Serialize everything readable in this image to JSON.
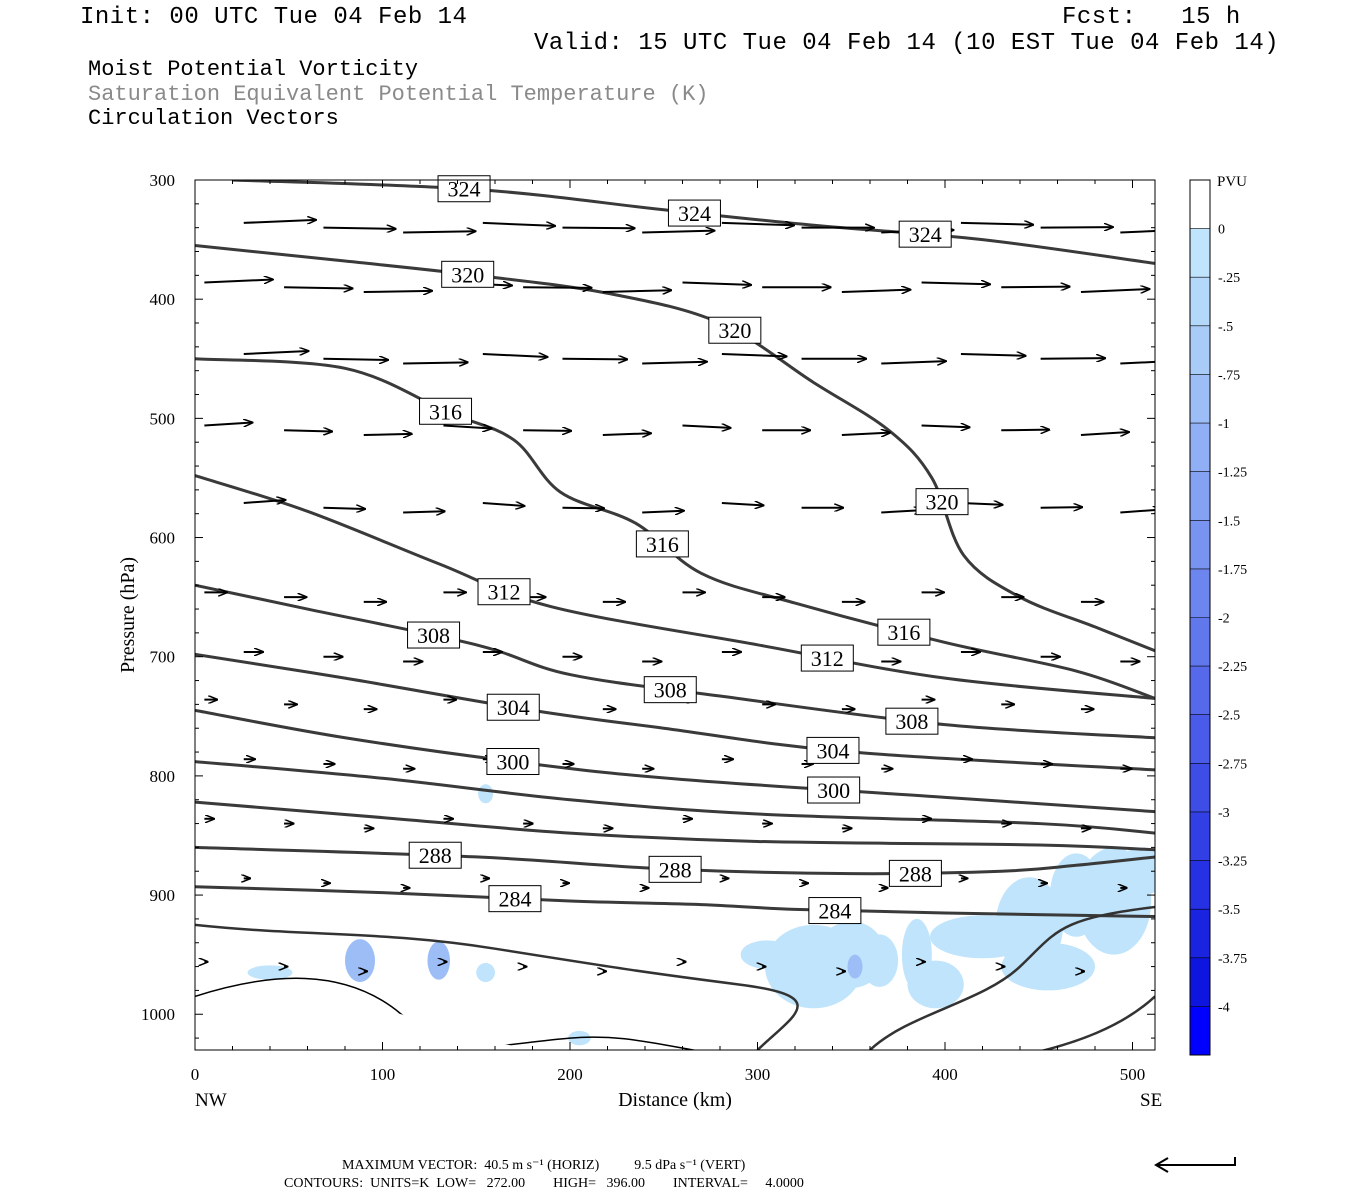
{
  "header": {
    "init": "Init: 00 UTC Tue 04 Feb 14",
    "fcst": "Fcst:   15 h",
    "valid": "Valid: 15 UTC Tue 04 Feb 14 (10 EST Tue 04 Feb 14)"
  },
  "titles": [
    "Moist Potential Vorticity",
    "Saturation Equivalent Potential Temperature (K)",
    "Circulation Vectors"
  ],
  "colors": {
    "title_gray": "#8a8a8a",
    "contour": "#3a3a3a",
    "pv_light": "#bfe4fb"
  },
  "footer": {
    "max_vector": "MAXIMUM VECTOR:  40.5 m s⁻¹ (HORIZ)          9.5 dPa s⁻¹ (VERT)",
    "contours": "CONTOURS:  UNITS=K  LOW=   272.00        HIGH=   396.00        INTERVAL=     4.0000"
  },
  "chart_data": {
    "type": "cross-section",
    "xlabel": "Distance (km)",
    "ylabel": "Pressure (hPa)",
    "x_ticks": [
      "0",
      "100",
      "200",
      "300",
      "400",
      "500"
    ],
    "x_end_labels": [
      "NW",
      "SE"
    ],
    "y_ticks": [
      "300",
      "400",
      "500",
      "600",
      "700",
      "800",
      "900",
      "1000"
    ],
    "xlim": [
      0,
      512
    ],
    "ylim": [
      1030,
      300
    ],
    "colorbar": {
      "title": "PVU",
      "labels": [
        "0",
        "-.25",
        "-.5",
        "-.75",
        "-1",
        "-1.25",
        "-1.5",
        "-1.75",
        "-2",
        "-2.25",
        "-2.5",
        "-2.75",
        "-3",
        "-3.25",
        "-3.5",
        "-3.75",
        "-4"
      ],
      "colors": [
        "#ffffff",
        "#bfe4fb",
        "#b4d8fa",
        "#a8cbf8",
        "#9cbdf6",
        "#90aff4",
        "#85a1f2",
        "#7993f0",
        "#6d85ee",
        "#6177ec",
        "#5569ea",
        "#495be8",
        "#3d4de6",
        "#313fe4",
        "#2531e2",
        "#1923e0",
        "#0d15de",
        "#0000ff"
      ]
    },
    "contours": [
      {
        "level": 324,
        "labels": [
          "324",
          "324",
          "324"
        ],
        "pts": [
          [
            20,
            300
          ],
          [
            150,
            308
          ],
          [
            250,
            325
          ],
          [
            330,
            338
          ],
          [
            420,
            350
          ],
          [
            512,
            370
          ]
        ]
      },
      {
        "level": 320,
        "labels": [
          "320",
          "320",
          "320"
        ],
        "pts": [
          [
            0,
            355
          ],
          [
            80,
            368
          ],
          [
            150,
            380
          ],
          [
            220,
            395
          ],
          [
            280,
            420
          ],
          [
            330,
            470
          ],
          [
            370,
            510
          ],
          [
            393,
            550
          ],
          [
            410,
            615
          ],
          [
            440,
            650
          ],
          [
            480,
            675
          ],
          [
            512,
            695
          ]
        ]
      },
      {
        "level": 316,
        "labels": [
          "316",
          "316",
          "316"
        ],
        "pts": [
          [
            0,
            450
          ],
          [
            80,
            458
          ],
          [
            135,
            495
          ],
          [
            170,
            518
          ],
          [
            195,
            562
          ],
          [
            235,
            588
          ],
          [
            270,
            630
          ],
          [
            320,
            655
          ],
          [
            400,
            688
          ],
          [
            470,
            712
          ],
          [
            512,
            735
          ]
        ]
      },
      {
        "level": 312,
        "labels": [
          "312",
          "312"
        ],
        "pts": [
          [
            0,
            548
          ],
          [
            60,
            578
          ],
          [
            130,
            622
          ],
          [
            190,
            658
          ],
          [
            300,
            690
          ],
          [
            400,
            718
          ],
          [
            512,
            735
          ]
        ]
      },
      {
        "level": 308,
        "labels": [
          "308",
          "308",
          "308"
        ],
        "pts": [
          [
            0,
            640
          ],
          [
            60,
            660
          ],
          [
            150,
            690
          ],
          [
            200,
            715
          ],
          [
            280,
            733
          ],
          [
            400,
            757
          ],
          [
            512,
            768
          ]
        ]
      },
      {
        "level": 304,
        "labels": [
          "304",
          "304"
        ],
        "pts": [
          [
            0,
            698
          ],
          [
            80,
            718
          ],
          [
            180,
            745
          ],
          [
            250,
            760
          ],
          [
            350,
            780
          ],
          [
            512,
            795
          ]
        ]
      },
      {
        "level": 300,
        "labels": [
          "300",
          "300"
        ],
        "pts": [
          [
            0,
            745
          ],
          [
            80,
            768
          ],
          [
            180,
            790
          ],
          [
            260,
            803
          ],
          [
            400,
            818
          ],
          [
            512,
            830
          ]
        ]
      },
      {
        "level": 296,
        "labels": [],
        "pts": [
          [
            0,
            788
          ],
          [
            100,
            802
          ],
          [
            200,
            820
          ],
          [
            300,
            832
          ],
          [
            450,
            840
          ],
          [
            512,
            848
          ]
        ]
      },
      {
        "level": 292,
        "labels": [],
        "pts": [
          [
            0,
            822
          ],
          [
            100,
            835
          ],
          [
            200,
            848
          ],
          [
            300,
            855
          ],
          [
            450,
            858
          ],
          [
            512,
            862
          ]
        ]
      },
      {
        "level": 288,
        "labels": [
          "288",
          "288",
          "288"
        ],
        "pts": [
          [
            0,
            860
          ],
          [
            150,
            868
          ],
          [
            250,
            878
          ],
          [
            350,
            882
          ],
          [
            430,
            880
          ],
          [
            470,
            875
          ],
          [
            512,
            868
          ]
        ]
      },
      {
        "level": 284,
        "labels": [
          "284",
          "284"
        ],
        "pts": [
          [
            0,
            893
          ],
          [
            100,
            898
          ],
          [
            200,
            905
          ],
          [
            270,
            908
          ],
          [
            320,
            912
          ],
          [
            400,
            915
          ],
          [
            512,
            918
          ]
        ]
      }
    ],
    "vectors_rows_hPa": [
      340,
      390,
      450,
      510,
      575,
      650,
      700,
      740,
      790,
      840,
      890,
      960
    ],
    "vectors_note": "circulation vectors, stronger aloft, weakening toward surface"
  }
}
